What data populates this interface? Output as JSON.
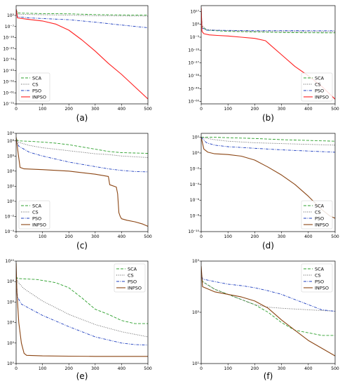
{
  "figure": {
    "panels": [
      {
        "id": "a",
        "caption": "(a)",
        "scale": "log",
        "yticks": [
          {
            "exp": 2,
            "label": "10²"
          },
          {
            "exp": -7,
            "label": "10⁻⁷"
          },
          {
            "exp": -16,
            "label": "10⁻¹⁶"
          },
          {
            "exp": -25,
            "label": "10⁻²⁵"
          },
          {
            "exp": -34,
            "label": "10⁻³⁴"
          },
          {
            "exp": -43,
            "label": "10⁻⁴³"
          },
          {
            "exp": -52,
            "label": "10⁻⁵²"
          },
          {
            "exp": -61,
            "label": "10⁻⁶¹"
          },
          {
            "exp": -70,
            "label": "10⁻⁷⁰"
          }
        ],
        "xticks": [
          0,
          100,
          200,
          300,
          400,
          500
        ],
        "legend": "bottom-left"
      },
      {
        "id": "b",
        "caption": "(b)",
        "scale": "log",
        "yticks": [
          {
            "exp": 17,
            "label": "10¹⁷"
          },
          {
            "exp": 6,
            "label": "10⁶"
          },
          {
            "exp": -5,
            "label": "10⁻⁵"
          },
          {
            "exp": -16,
            "label": "10⁻¹⁶"
          },
          {
            "exp": -27,
            "label": "10⁻²⁷"
          },
          {
            "exp": -38,
            "label": "10⁻³⁸"
          },
          {
            "exp": -49,
            "label": "10⁻⁴⁹"
          },
          {
            "exp": -60,
            "label": "10⁻⁶⁰"
          }
        ],
        "xticks": [
          0,
          100,
          200,
          300,
          400,
          500
        ],
        "legend": "bottom-right"
      },
      {
        "id": "c",
        "caption": "(c)",
        "scale": "log",
        "yticks": [
          {
            "exp": 9,
            "label": "10⁹"
          },
          {
            "exp": 8,
            "label": "10⁸"
          },
          {
            "exp": 6,
            "label": "10⁶"
          },
          {
            "exp": 4,
            "label": "10⁴"
          },
          {
            "exp": 2,
            "label": "10²"
          },
          {
            "exp": 0,
            "label": "10⁰"
          },
          {
            "exp": -2,
            "label": "10⁻²"
          },
          {
            "exp": -4,
            "label": "10⁻⁴"
          }
        ],
        "xticks": [
          0,
          100,
          200,
          300,
          400,
          500
        ],
        "legend": "bottom-left"
      },
      {
        "id": "d",
        "caption": "(d)",
        "scale": "log",
        "yticks": [
          {
            "exp": 2,
            "label": "10²"
          },
          {
            "exp": 0,
            "label": "10⁰"
          },
          {
            "exp": -2,
            "label": "10⁻²"
          },
          {
            "exp": -4,
            "label": "10⁻⁴"
          },
          {
            "exp": -6,
            "label": "10⁻⁶"
          },
          {
            "exp": -8,
            "label": "10⁻⁸"
          },
          {
            "exp": -10,
            "label": "10⁻¹⁰"
          }
        ],
        "xticks": [
          0,
          100,
          200,
          300,
          400,
          500
        ],
        "legend": "bottom-right"
      },
      {
        "id": "e",
        "caption": "(e)",
        "scale": "log",
        "yticks": [
          {
            "exp": 10,
            "label": "10¹⁰"
          },
          {
            "exp": 8,
            "label": "10⁸"
          },
          {
            "exp": 6,
            "label": "10⁶"
          },
          {
            "exp": 4,
            "label": "10⁴"
          },
          {
            "exp": 2,
            "label": "10²"
          },
          {
            "exp": 0,
            "label": "10⁰"
          }
        ],
        "xticks": [
          0,
          100,
          200,
          300,
          400,
          500
        ],
        "legend": "top-right"
      },
      {
        "id": "f",
        "caption": "(f)",
        "scale": "log",
        "yticks": [
          {
            "exp": 3,
            "label": "10³"
          },
          {
            "exp": 2,
            "label": "10²"
          },
          {
            "exp": 1,
            "label": "10¹"
          }
        ],
        "xticks": [
          0,
          100,
          200,
          300,
          400,
          500
        ],
        "legend": "top-right"
      }
    ]
  },
  "chart_data": [
    {
      "type": "line",
      "panel": "a",
      "xlim": [
        0,
        500
      ],
      "ylim": [
        -70,
        10
      ],
      "yscale": "log",
      "series": [
        {
          "name": "SCA",
          "color": "#2ca02c",
          "style": "dashed",
          "x": [
            0,
            5,
            100,
            200,
            300,
            400,
            500
          ],
          "y": [
            7,
            4,
            3.5,
            3.3,
            2.7,
            2.4,
            2.2
          ]
        },
        {
          "name": "CS",
          "color": "#555555",
          "style": "dotted",
          "x": [
            0,
            5,
            100,
            200,
            300,
            400,
            500
          ],
          "y": [
            7,
            3,
            2.6,
            2.2,
            1.8,
            1.6,
            1.5
          ]
        },
        {
          "name": "PSO",
          "color": "#1f3fbf",
          "style": "dashdot",
          "x": [
            0,
            5,
            50,
            100,
            200,
            300,
            400,
            500
          ],
          "y": [
            7,
            1,
            0,
            -0.5,
            -1.5,
            -3.5,
            -5.8,
            -8
          ]
        },
        {
          "name": "INPSO",
          "color": "#ff2020",
          "style": "solid",
          "x": [
            0,
            5,
            40,
            100,
            150,
            200,
            250,
            300,
            350,
            400,
            450,
            500
          ],
          "y": [
            7,
            0,
            -1,
            -2.5,
            -5,
            -10,
            -18,
            -27,
            -37,
            -46,
            -56,
            -66
          ]
        }
      ]
    },
    {
      "type": "line",
      "panel": "b",
      "xlim": [
        0,
        500
      ],
      "ylim": [
        -62,
        22
      ],
      "yscale": "log",
      "series": [
        {
          "name": "SCA",
          "color": "#2ca02c",
          "style": "dashed",
          "x": [
            0,
            3,
            20,
            100,
            200,
            300,
            400,
            500
          ],
          "y": [
            20,
            4,
            1,
            0,
            -0.5,
            -1,
            -1.2,
            -1.3
          ]
        },
        {
          "name": "CS",
          "color": "#555555",
          "style": "dotted",
          "x": [
            0,
            3,
            20,
            100,
            200,
            500
          ],
          "y": [
            20,
            5,
            1.5,
            0.5,
            0,
            -0.3
          ]
        },
        {
          "name": "PSO",
          "color": "#1f3fbf",
          "style": "dashdot",
          "x": [
            0,
            3,
            20,
            100,
            200,
            500
          ],
          "y": [
            18,
            3,
            1,
            0.8,
            0.6,
            0.5
          ]
        },
        {
          "name": "INPSO",
          "color": "#ff2020",
          "style": "solid",
          "x": [
            0,
            3,
            10,
            30,
            60,
            100,
            150,
            200,
            240,
            260,
            300,
            350,
            400,
            450,
            500
          ],
          "y": [
            20,
            0,
            -2,
            -3,
            -3.5,
            -4,
            -5,
            -6,
            -8,
            -12,
            -20,
            -30,
            -38,
            -47,
            -58
          ]
        }
      ]
    },
    {
      "type": "line",
      "panel": "c",
      "xlim": [
        0,
        500
      ],
      "ylim": [
        -4,
        9
      ],
      "yscale": "log",
      "series": [
        {
          "name": "SCA",
          "color": "#2ca02c",
          "style": "dashed",
          "x": [
            0,
            10,
            50,
            100,
            150,
            200,
            250,
            300,
            350,
            400,
            450,
            500
          ],
          "y": [
            8.2,
            8,
            7.95,
            7.85,
            7.7,
            7.5,
            7.2,
            6.9,
            6.6,
            6.45,
            6.4,
            6.35
          ]
        },
        {
          "name": "CS",
          "color": "#555555",
          "style": "dotted",
          "x": [
            0,
            10,
            50,
            100,
            150,
            200,
            250,
            300,
            350,
            400,
            450,
            500
          ],
          "y": [
            8.2,
            7.8,
            7.4,
            7.1,
            6.9,
            6.7,
            6.5,
            6.3,
            6.2,
            6,
            5.9,
            5.8
          ]
        },
        {
          "name": "PSO",
          "color": "#1f3fbf",
          "style": "dashdot",
          "x": [
            0,
            10,
            50,
            100,
            150,
            200,
            250,
            300,
            350,
            400,
            450,
            500
          ],
          "y": [
            8.2,
            7.3,
            6.5,
            6,
            5.6,
            5.2,
            4.9,
            4.6,
            4.3,
            4.1,
            3.95,
            3.9
          ]
        },
        {
          "name": "INPSO",
          "color": "#8b4513",
          "style": "solid",
          "x": [
            0,
            8,
            15,
            30,
            100,
            200,
            300,
            350,
            355,
            380,
            385,
            390,
            395,
            400,
            420,
            450,
            480,
            500
          ],
          "y": [
            8.5,
            6.3,
            4.5,
            4.3,
            4.2,
            4,
            3.6,
            3.3,
            2.2,
            1.9,
            1,
            -1.5,
            -2,
            -2.3,
            -2.5,
            -2.7,
            -3,
            -3.3
          ]
        }
      ]
    },
    {
      "type": "line",
      "panel": "d",
      "xlim": [
        0,
        500
      ],
      "ylim": [
        -10,
        2.5
      ],
      "yscale": "log",
      "series": [
        {
          "name": "SCA",
          "color": "#2ca02c",
          "style": "dashed",
          "x": [
            0,
            50,
            100,
            200,
            300,
            400,
            500
          ],
          "y": [
            2,
            2,
            1.95,
            1.85,
            1.7,
            1.6,
            1.5
          ]
        },
        {
          "name": "CS",
          "color": "#555555",
          "style": "dotted",
          "x": [
            0,
            50,
            100,
            200,
            300,
            400,
            500
          ],
          "y": [
            2,
            1.7,
            1.5,
            1.3,
            1.2,
            1.1,
            1
          ]
        },
        {
          "name": "PSO",
          "color": "#1f3fbf",
          "style": "dashdot",
          "x": [
            0,
            20,
            50,
            100,
            200,
            300,
            400,
            500
          ],
          "y": [
            2,
            1.3,
            1,
            0.8,
            0.6,
            0.4,
            0.25,
            0.1
          ]
        },
        {
          "name": "INPSO",
          "color": "#8b4513",
          "style": "solid",
          "x": [
            0,
            10,
            25,
            50,
            100,
            150,
            200,
            250,
            300,
            350,
            400,
            450,
            480,
            500
          ],
          "y": [
            2,
            0.5,
            0.1,
            -0.1,
            -0.2,
            -0.4,
            -0.9,
            -1.8,
            -2.8,
            -4,
            -5.5,
            -7.2,
            -8,
            -8.3
          ]
        }
      ]
    },
    {
      "type": "line",
      "panel": "e",
      "xlim": [
        0,
        500
      ],
      "ylim": [
        0,
        10
      ],
      "yscale": "log",
      "series": [
        {
          "name": "SCA",
          "color": "#2ca02c",
          "style": "dashed",
          "x": [
            0,
            5,
            80,
            150,
            200,
            250,
            300,
            350,
            400,
            450,
            500
          ],
          "y": [
            8.5,
            8.3,
            8.2,
            7.9,
            7.4,
            6.4,
            5.3,
            4.8,
            4.2,
            3.9,
            3.9
          ]
        },
        {
          "name": "CS",
          "color": "#555555",
          "style": "dotted",
          "x": [
            0,
            5,
            30,
            100,
            200,
            300,
            400,
            500
          ],
          "y": [
            8.5,
            8,
            7.3,
            6.1,
            4.8,
            3.8,
            3.1,
            2.6
          ]
        },
        {
          "name": "PSO",
          "color": "#1f3fbf",
          "style": "dashdot",
          "x": [
            0,
            5,
            20,
            100,
            200,
            300,
            400,
            450,
            500
          ],
          "y": [
            8.5,
            6.5,
            5.8,
            4.7,
            3.6,
            2.6,
            2,
            1.85,
            1.8
          ]
        },
        {
          "name": "INPSO",
          "color": "#8b4513",
          "style": "solid",
          "x": [
            0,
            3,
            10,
            20,
            30,
            40,
            100,
            200,
            300,
            400,
            500
          ],
          "y": [
            9.8,
            7,
            4,
            2,
            1,
            0.8,
            0.75,
            0.72,
            0.7,
            0.7,
            0.7
          ]
        }
      ]
    },
    {
      "type": "line",
      "panel": "f",
      "xlim": [
        0,
        500
      ],
      "ylim": [
        1,
        3
      ],
      "yscale": "log",
      "series": [
        {
          "name": "SCA",
          "color": "#2ca02c",
          "style": "dashed",
          "x": [
            0,
            5,
            50,
            100,
            150,
            200,
            250,
            300,
            350,
            400,
            450,
            500
          ],
          "y": [
            2.8,
            2.6,
            2.45,
            2.35,
            2.25,
            2.15,
            2,
            1.8,
            1.65,
            1.6,
            1.55,
            1.55
          ]
        },
        {
          "name": "CS",
          "color": "#555555",
          "style": "dotted",
          "x": [
            0,
            5,
            50,
            100,
            150,
            200,
            250,
            300,
            400,
            500
          ],
          "y": [
            2.8,
            2.6,
            2.45,
            2.35,
            2.25,
            2.15,
            2.1,
            2.08,
            2.05,
            2.02
          ]
        },
        {
          "name": "PSO",
          "color": "#1f3fbf",
          "style": "dashdot",
          "x": [
            0,
            5,
            50,
            100,
            150,
            200,
            250,
            300,
            350,
            400,
            450,
            500
          ],
          "y": [
            2.8,
            2.65,
            2.6,
            2.55,
            2.52,
            2.48,
            2.42,
            2.35,
            2.25,
            2.15,
            2.05,
            2.02
          ]
        },
        {
          "name": "INPSO",
          "color": "#8b4513",
          "style": "solid",
          "x": [
            0,
            5,
            50,
            100,
            150,
            200,
            250,
            300,
            350,
            400,
            450,
            500
          ],
          "y": [
            2.9,
            2.5,
            2.4,
            2.35,
            2.3,
            2.22,
            2.08,
            1.85,
            1.65,
            1.45,
            1.3,
            1.15
          ]
        }
      ]
    }
  ]
}
